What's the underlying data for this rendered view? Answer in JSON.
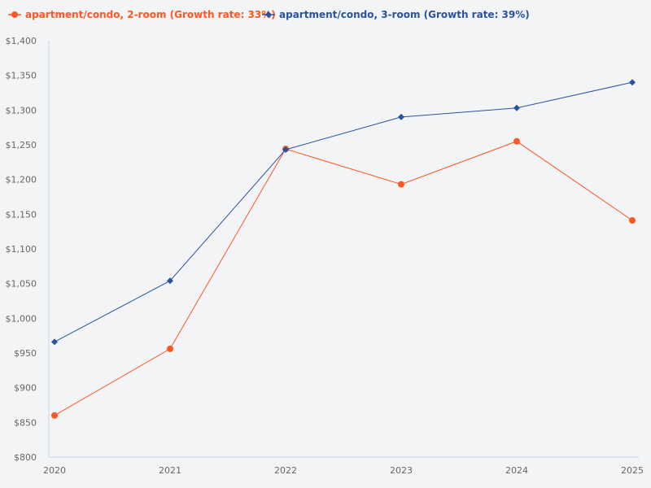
{
  "chart_data": {
    "type": "line",
    "title": "",
    "xlabel": "",
    "ylabel": "",
    "categories": [
      "2020",
      "2021",
      "2022",
      "2023",
      "2024",
      "2025"
    ],
    "ylim": [
      800,
      1400
    ],
    "yticks": [
      "$800",
      "$850",
      "$900",
      "$950",
      "$1,000",
      "$1,050",
      "$1,100",
      "$1,150",
      "$1,200",
      "$1,250",
      "$1,300",
      "$1,350",
      "$1,400"
    ],
    "grid": false,
    "legend_position": "top-left",
    "series": [
      {
        "name": "apartment/condo, 2-room (Growth rate: 33%)",
        "color": "#ff5722",
        "marker": "circle",
        "values": [
          860,
          956,
          1244,
          1193,
          1255,
          1141
        ]
      },
      {
        "name": "apartment/condo, 3-room (Growth rate: 39%)",
        "color": "#2952a3",
        "marker": "diamond",
        "values": [
          966,
          1054,
          1243,
          1290,
          1303,
          1340
        ]
      }
    ]
  }
}
